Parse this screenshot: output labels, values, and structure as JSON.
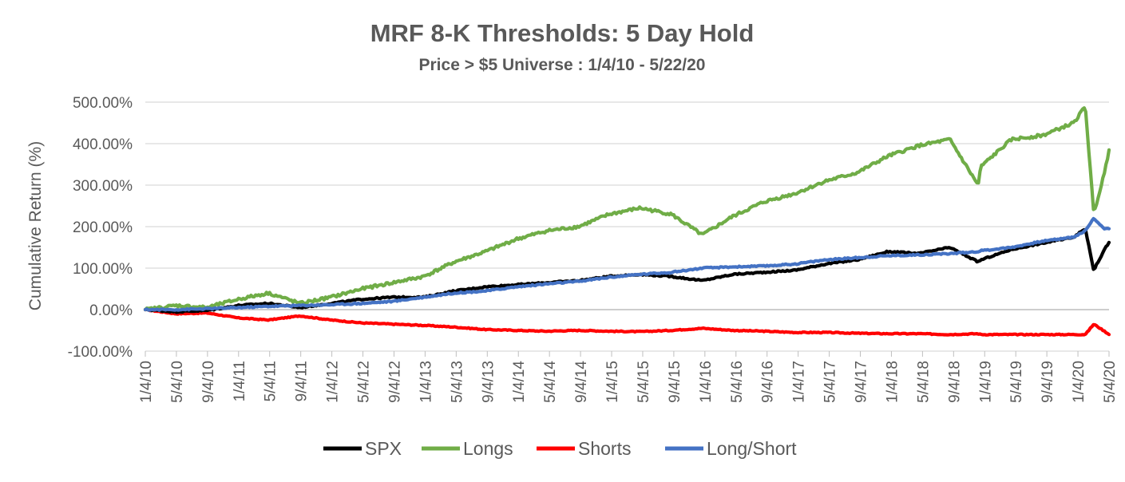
{
  "chart_data": {
    "type": "line",
    "title": "MRF 8-K Thresholds: 5 Day Hold",
    "subtitle": "Price > $5 Universe : 1/4/10 - 5/22/20",
    "xlabel": "",
    "ylabel": "Cumulative Return (%)",
    "ylim": [
      -100,
      500
    ],
    "yticks": [
      -100,
      0,
      100,
      200,
      300,
      400,
      500
    ],
    "ytick_labels": [
      "-100.00%",
      "0.00%",
      "100.00%",
      "200.00%",
      "300.00%",
      "400.00%",
      "500.00%"
    ],
    "x_start": "2010-01-04",
    "x_end": "2020-05-22",
    "xtick_labels": [
      "1/4/10",
      "5/4/10",
      "9/4/10",
      "1/4/11",
      "5/4/11",
      "9/4/11",
      "1/4/12",
      "5/4/12",
      "9/4/12",
      "1/4/13",
      "5/4/13",
      "9/4/13",
      "1/4/14",
      "5/4/14",
      "9/4/14",
      "1/4/15",
      "5/4/15",
      "9/4/15",
      "1/4/16",
      "5/4/16",
      "9/4/16",
      "1/4/17",
      "5/4/17",
      "9/4/17",
      "1/4/18",
      "5/4/18",
      "9/4/18",
      "1/4/19",
      "5/4/19",
      "9/4/19",
      "1/4/20",
      "5/4/20"
    ],
    "grid": true,
    "legend_position": "bottom",
    "x": [
      "1/4/10",
      "5/4/10",
      "9/4/10",
      "1/4/11",
      "5/4/11",
      "9/4/11",
      "1/4/12",
      "5/4/12",
      "9/4/12",
      "1/4/13",
      "5/4/13",
      "9/4/13",
      "1/4/14",
      "5/4/14",
      "9/4/14",
      "1/4/15",
      "5/4/15",
      "9/4/15",
      "1/4/16",
      "5/4/16",
      "9/4/16",
      "1/4/17",
      "5/4/17",
      "9/4/17",
      "1/4/18",
      "5/4/18",
      "9/4/18",
      "12/24/18",
      "1/4/19",
      "5/4/19",
      "9/4/19",
      "1/4/20",
      "2/19/20",
      "3/23/20",
      "5/4/20",
      "5/22/20"
    ],
    "series": [
      {
        "name": "SPX",
        "color": "#000000",
        "values": [
          0,
          -5,
          -2,
          10,
          15,
          5,
          15,
          25,
          30,
          30,
          45,
          55,
          60,
          65,
          70,
          80,
          85,
          80,
          70,
          85,
          90,
          95,
          110,
          120,
          140,
          135,
          150,
          115,
          120,
          145,
          160,
          175,
          195,
          95,
          145,
          162
        ]
      },
      {
        "name": "Longs",
        "color": "#70AD47",
        "values": [
          0,
          10,
          5,
          25,
          40,
          15,
          30,
          50,
          65,
          80,
          115,
          140,
          170,
          190,
          200,
          230,
          245,
          230,
          180,
          225,
          260,
          280,
          310,
          330,
          370,
          395,
          410,
          300,
          345,
          410,
          420,
          450,
          490,
          230,
          330,
          385
        ]
      },
      {
        "name": "Shorts",
        "color": "#FF0000",
        "values": [
          0,
          -10,
          -8,
          -20,
          -25,
          -15,
          -25,
          -32,
          -35,
          -38,
          -42,
          -48,
          -50,
          -52,
          -50,
          -52,
          -53,
          -50,
          -45,
          -50,
          -52,
          -55,
          -55,
          -57,
          -58,
          -58,
          -60,
          -58,
          -60,
          -60,
          -60,
          -60,
          -60,
          -35,
          -52,
          -60
        ]
      },
      {
        "name": "Long/Short",
        "color": "#4472C4",
        "values": [
          0,
          0,
          2,
          5,
          8,
          10,
          12,
          15,
          20,
          30,
          40,
          45,
          55,
          62,
          68,
          78,
          85,
          90,
          100,
          103,
          105,
          110,
          120,
          125,
          130,
          132,
          135,
          140,
          142,
          150,
          165,
          175,
          190,
          220,
          195,
          195
        ]
      }
    ]
  }
}
